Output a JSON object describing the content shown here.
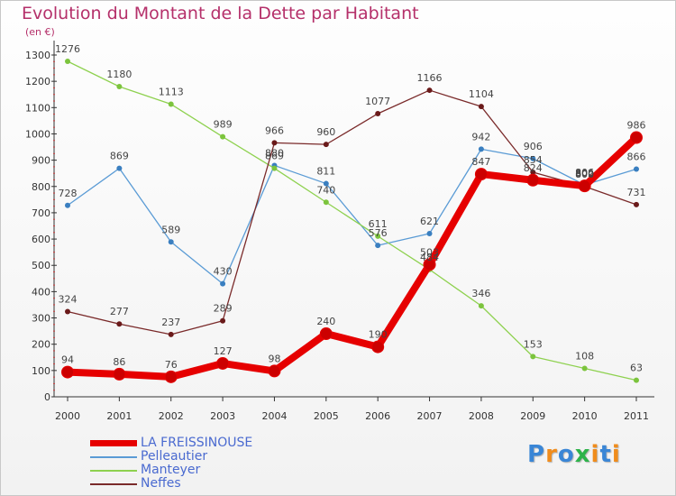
{
  "title": "Evolution du Montant de la Dette par Habitant",
  "unit_label": "(en €)",
  "logo_text": "Proxiti",
  "logo_letters": [
    {
      "ch": "P",
      "color": "#3a86d6"
    },
    {
      "ch": "r",
      "color": "#f08c1c"
    },
    {
      "ch": "o",
      "color": "#3a86d6"
    },
    {
      "ch": "x",
      "color": "#2db34a"
    },
    {
      "ch": "i",
      "color": "#f08c1c"
    },
    {
      "ch": "t",
      "color": "#3a86d6"
    },
    {
      "ch": "i",
      "color": "#f08c1c"
    }
  ],
  "chart_data": {
    "type": "line",
    "title": "Evolution du Montant de la Dette par Habitant",
    "ylabel": "(en €)",
    "xlabel": "",
    "x": [
      "2000",
      "2001",
      "2002",
      "2003",
      "2004",
      "2005",
      "2006",
      "2007",
      "2008",
      "2009",
      "2010",
      "2011"
    ],
    "ylim": [
      0,
      1300
    ],
    "yticks": [
      0,
      100,
      200,
      300,
      400,
      500,
      600,
      700,
      800,
      900,
      1000,
      1100,
      1200,
      1300
    ],
    "grid": false,
    "legend_position": "bottom-left",
    "series": [
      {
        "name": "LA FREISSINOUSE",
        "color": "#e60000",
        "dot": "#cc0000",
        "emphasis": true,
        "values": [
          94,
          86,
          76,
          127,
          98,
          240,
          190,
          503,
          847,
          824,
          802,
          986
        ]
      },
      {
        "name": "Pelleautier",
        "color": "#5a9bd5",
        "dot": "#3a7fc0",
        "emphasis": false,
        "values": [
          728,
          869,
          589,
          430,
          880,
          811,
          576,
          621,
          942,
          906,
          806,
          866
        ]
      },
      {
        "name": "Manteyer",
        "color": "#8ed14f",
        "dot": "#7cc43d",
        "emphasis": false,
        "values": [
          1276,
          1180,
          1113,
          989,
          869,
          740,
          611,
          484,
          346,
          153,
          108,
          63
        ]
      },
      {
        "name": "Neffes",
        "color": "#7a2a2a",
        "dot": "#6a1a1a",
        "emphasis": false,
        "values": [
          324,
          277,
          237,
          289,
          966,
          960,
          1077,
          1166,
          1104,
          854,
          800,
          731
        ]
      }
    ]
  }
}
